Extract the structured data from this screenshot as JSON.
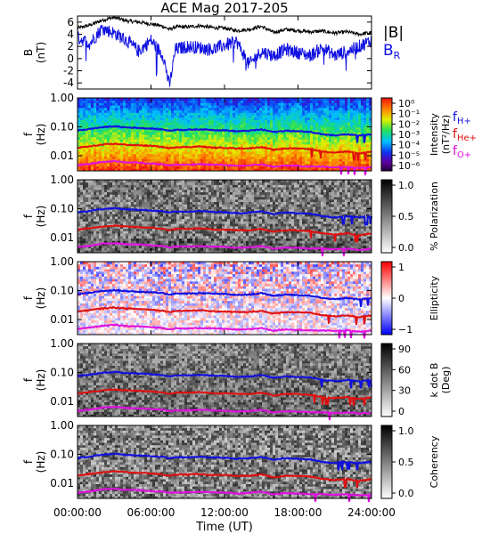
{
  "chart_data": [
    {
      "type": "line",
      "title": "ACE Mag 2017-205",
      "ylabel": [
        "B",
        "(nT)"
      ],
      "ylim": [
        -5,
        7
      ],
      "yticks": [
        6,
        4,
        2,
        0,
        -2,
        -4
      ],
      "xlim": [
        0,
        24
      ],
      "series": [
        {
          "name": "|B|",
          "color": "#000000",
          "x": [
            0,
            1,
            2,
            3,
            4,
            5,
            6,
            7,
            7.5,
            8,
            9,
            10,
            11,
            12,
            13,
            14,
            15,
            16,
            17,
            18,
            19,
            20,
            21,
            22,
            23,
            24
          ],
          "y": [
            5.0,
            5.5,
            6.3,
            6.8,
            6.2,
            6.0,
            5.7,
            5.3,
            4.8,
            5.2,
            5.2,
            5.4,
            5.1,
            5.0,
            4.6,
            4.8,
            5.3,
            4.3,
            4.8,
            4.6,
            4.4,
            4.5,
            4.2,
            4.4,
            4.0,
            4.3
          ]
        },
        {
          "name": "B",
          "sub": "R",
          "color": "#1010e0",
          "x": [
            0,
            1,
            2,
            3,
            4,
            5,
            6,
            7,
            7.5,
            8,
            9,
            10,
            11,
            12,
            13,
            14,
            15,
            16,
            17,
            18,
            19,
            20,
            21,
            22,
            23,
            24
          ],
          "y": [
            3.5,
            2.5,
            5.0,
            4.2,
            3.0,
            1.2,
            3.0,
            0.5,
            -4.5,
            1.5,
            2.0,
            1.8,
            1.5,
            2.2,
            2.8,
            -1.0,
            1.2,
            0.5,
            1.5,
            1.0,
            0.5,
            1.8,
            0.5,
            1.2,
            2.0,
            3.0
          ]
        }
      ],
      "legend": "right"
    },
    {
      "type": "heatmap",
      "ylabel": [
        "f",
        "(Hz)"
      ],
      "yscale": "log",
      "ylim": [
        0.003,
        1.0
      ],
      "yticks": [
        "1.00",
        "0.10",
        "0.01"
      ],
      "colorbar": {
        "label": [
          "Intensity",
          "(nT²/Hz)"
        ],
        "ticks": [
          "10⁰",
          "10⁻¹",
          "10⁻²",
          "10⁻³",
          "10⁻⁴",
          "10⁻⁵",
          "10⁻⁶"
        ],
        "palette": "rainbow"
      },
      "legend_labels": [
        {
          "text": "f",
          "sub": "H+",
          "color": "#1010e0"
        },
        {
          "text": "f",
          "sub": "He+",
          "color": "#e01010"
        },
        {
          "text": "f",
          "sub": "O+",
          "color": "#e010e0"
        }
      ]
    },
    {
      "type": "heatmap",
      "ylabel": [
        "f",
        "(Hz)"
      ],
      "yscale": "log",
      "ylim": [
        0.003,
        1.0
      ],
      "yticks": [
        "1.00",
        "0.10",
        "0.01"
      ],
      "colorbar": {
        "label": [
          "% Polarization"
        ],
        "ticks": [
          "1.0",
          "0.5",
          "0.0"
        ],
        "palette": "gray"
      }
    },
    {
      "type": "heatmap",
      "ylabel": [
        "f",
        "(Hz)"
      ],
      "yscale": "log",
      "ylim": [
        0.003,
        1.0
      ],
      "yticks": [
        "1.00",
        "0.10",
        "0.01"
      ],
      "colorbar": {
        "label": [
          "Ellipticity"
        ],
        "ticks": [
          "1",
          "0",
          "−1"
        ],
        "palette": "bwr"
      }
    },
    {
      "type": "heatmap",
      "ylabel": [
        "f",
        "(Hz)"
      ],
      "yscale": "log",
      "ylim": [
        0.003,
        1.0
      ],
      "yticks": [
        "1.00",
        "0.10",
        "0.01"
      ],
      "colorbar": {
        "label": [
          "k dot B",
          "(Deg)"
        ],
        "ticks": [
          "90",
          "60",
          "30",
          "0"
        ],
        "palette": "gray"
      }
    },
    {
      "type": "heatmap",
      "ylabel": [
        "f",
        "(Hz)"
      ],
      "yscale": "log",
      "ylim": [
        0.003,
        1.0
      ],
      "yticks": [
        "1.00",
        "0.10",
        "0.01"
      ],
      "colorbar": {
        "label": [
          "Coherency"
        ],
        "ticks": [
          "1.0",
          "0.5",
          "0.0"
        ],
        "palette": "gray"
      }
    }
  ],
  "gyrofrequency_lines": {
    "x": [
      0,
      1,
      2,
      3,
      4,
      5,
      6,
      7,
      7.5,
      8,
      9,
      10,
      11,
      12,
      13,
      14,
      15,
      16,
      17,
      18,
      19,
      20,
      21,
      22,
      23,
      24
    ],
    "H+": [
      0.075,
      0.084,
      0.097,
      0.104,
      0.095,
      0.092,
      0.087,
      0.081,
      0.073,
      0.079,
      0.079,
      0.082,
      0.078,
      0.076,
      0.07,
      0.073,
      0.081,
      0.066,
      0.073,
      0.07,
      0.067,
      0.055,
      0.05,
      0.055,
      0.05,
      0.055
    ],
    "He+": [
      0.019,
      0.021,
      0.024,
      0.026,
      0.024,
      0.023,
      0.022,
      0.02,
      0.018,
      0.02,
      0.02,
      0.021,
      0.019,
      0.019,
      0.018,
      0.018,
      0.02,
      0.016,
      0.018,
      0.018,
      0.017,
      0.014,
      0.013,
      0.014,
      0.012,
      0.014
    ],
    "O+": [
      0.0047,
      0.0052,
      0.0061,
      0.0065,
      0.0059,
      0.0058,
      0.0054,
      0.0051,
      0.0046,
      0.0049,
      0.0049,
      0.0051,
      0.0049,
      0.0048,
      0.0044,
      0.0046,
      0.0051,
      0.0041,
      0.0046,
      0.0044,
      0.0042,
      0.0042,
      0.004,
      0.0042,
      0.0038,
      0.0041
    ]
  },
  "xaxis": {
    "ticks": [
      "00:00:00",
      "06:00:00",
      "12:00:00",
      "18:00:00",
      "24:00:00"
    ],
    "label": "Time (UT)"
  },
  "colors": {
    "H+": "#1010e0",
    "He+": "#e01010",
    "O+": "#e010e0"
  }
}
